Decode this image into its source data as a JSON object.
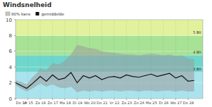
{
  "chart_data": {
    "type": "line",
    "title": "Windsnelheid",
    "x": [
      0,
      0.5,
      0.9,
      1.3,
      1.8,
      2,
      2.5,
      3,
      3.5,
      4,
      4.5,
      5,
      5.5,
      6,
      6.5,
      7,
      7.5,
      8,
      8.5,
      9,
      9.5,
      10,
      10.5,
      11,
      11.5,
      12,
      12.5,
      13,
      13.5,
      14,
      14.5
    ],
    "series": [
      {
        "name": "80% kans",
        "type": "area",
        "color": "#9a9a9a",
        "values": [
          2.3,
          2.1,
          1.8,
          2.6,
          3.4,
          3.8,
          3.6,
          4.5,
          4.3,
          4.8,
          5.6,
          6.8,
          6.6,
          6.4,
          6.3,
          6.0,
          5.9,
          5.8,
          5.7,
          5.6,
          5.6,
          5.5,
          5.6,
          5.7,
          5.6,
          5.5,
          5.6,
          5.4,
          5.5,
          5.1,
          5.0
        ],
        "low": [
          1.7,
          1.2,
          0.9,
          1.2,
          1.7,
          1.9,
          1.5,
          1.8,
          1.4,
          1.3,
          1.5,
          0.8,
          1.0,
          0.9,
          1.0,
          0.9,
          1.0,
          1.0,
          0.9,
          1.0,
          1.0,
          0.9,
          1.0,
          1.0,
          0.9,
          1.0,
          1.0,
          0.9,
          1.0,
          0.9,
          0.9
        ]
      },
      {
        "name": "gemiddelde",
        "type": "line",
        "color": "#111111",
        "marker": "square",
        "values": [
          2.0,
          1.6,
          1.3,
          1.8,
          2.5,
          2.8,
          2.2,
          3.0,
          2.4,
          2.6,
          3.3,
          2.0,
          2.9,
          2.6,
          2.9,
          2.4,
          2.7,
          2.8,
          2.6,
          3.0,
          2.8,
          2.7,
          2.9,
          3.1,
          2.8,
          3.0,
          3.2,
          2.6,
          2.9,
          2.2,
          2.3
        ]
      }
    ],
    "bands": [
      {
        "from": 0,
        "to": 3.4,
        "color": "#a9e4ee"
      },
      {
        "from": 3.4,
        "to": 5.5,
        "color": "#6fd6cc",
        "label": "3 Bft"
      },
      {
        "from": 5.5,
        "to": 8,
        "color": "#a8e294",
        "label": "4 Bft"
      },
      {
        "from": 8,
        "to": 10,
        "color": "#e2f29c",
        "label": "5 Bft"
      }
    ],
    "xlim": [
      0,
      15.2
    ],
    "xticks": [
      {
        "value": 0,
        "label": "Do 14"
      },
      {
        "value": 1,
        "label": "Vr 15"
      },
      {
        "value": 2,
        "label": "Za 16"
      },
      {
        "value": 3,
        "label": "Zo 17"
      },
      {
        "value": 4,
        "label": "Ma 18"
      },
      {
        "value": 5,
        "label": "Di 19"
      },
      {
        "value": 6,
        "label": "Wo 20"
      },
      {
        "value": 7,
        "label": "Do 21"
      },
      {
        "value": 8,
        "label": "Vr 22"
      },
      {
        "value": 9,
        "label": "Za 23"
      },
      {
        "value": 10,
        "label": "Zo 24"
      },
      {
        "value": 11,
        "label": "Ma 25"
      },
      {
        "value": 12,
        "label": "Di 26"
      },
      {
        "value": 13,
        "label": "Wo 27"
      },
      {
        "value": 14,
        "label": "Do 28"
      }
    ],
    "ylim": [
      0,
      10
    ],
    "yticks": [
      0,
      2,
      4,
      6,
      8,
      10
    ],
    "grid": true
  }
}
